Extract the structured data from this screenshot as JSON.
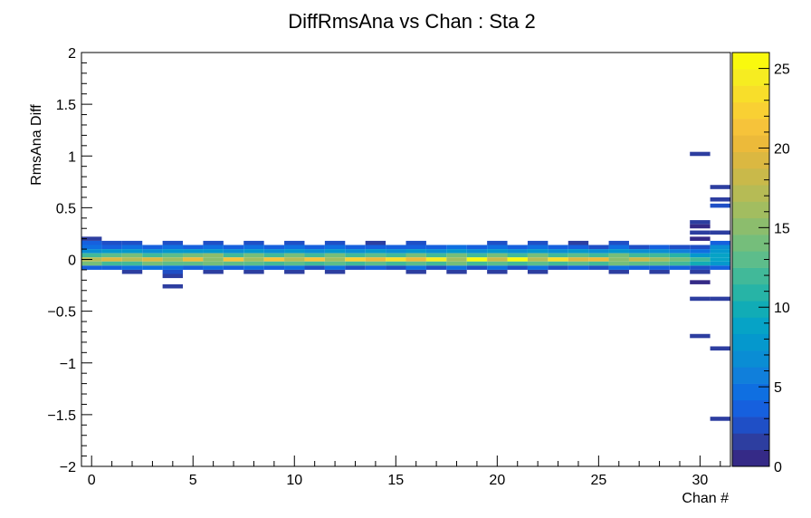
{
  "chart_data": {
    "type": "heatmap",
    "title": "DiffRmsAna vs Chan : Sta 2",
    "xlabel": "Chan #",
    "ylabel": "RmsAna Diff",
    "xlim": [
      -0.5,
      31.5
    ],
    "ylim": [
      -2,
      2
    ],
    "x_ticks": [
      0,
      5,
      10,
      15,
      20,
      25,
      30
    ],
    "y_ticks": [
      -2,
      -1.5,
      -1,
      -0.5,
      0,
      0.5,
      1,
      1.5,
      2
    ],
    "colorbar": {
      "min": 0,
      "max": 26,
      "ticks": [
        0,
        5,
        10,
        15,
        20,
        25
      ]
    },
    "bin_width_x": 1,
    "bin_width_y": 0.04,
    "grid": false,
    "cells": [
      [
        0,
        0.2,
        2
      ],
      [
        0,
        0.16,
        4
      ],
      [
        0,
        0.12,
        5
      ],
      [
        0,
        0.08,
        7
      ],
      [
        0,
        0.04,
        12
      ],
      [
        0,
        0,
        17
      ],
      [
        0,
        -0.04,
        14
      ],
      [
        0,
        -0.08,
        4
      ],
      [
        1,
        0.16,
        3
      ],
      [
        1,
        0.12,
        4
      ],
      [
        1,
        0.08,
        8
      ],
      [
        1,
        0.04,
        13
      ],
      [
        1,
        0,
        19
      ],
      [
        1,
        -0.04,
        12
      ],
      [
        1,
        -0.08,
        4
      ],
      [
        2,
        0.16,
        3
      ],
      [
        2,
        0.12,
        5
      ],
      [
        2,
        0.08,
        8
      ],
      [
        2,
        0.04,
        14
      ],
      [
        2,
        0,
        17
      ],
      [
        2,
        -0.04,
        12
      ],
      [
        2,
        -0.08,
        5
      ],
      [
        2,
        -0.12,
        2
      ],
      [
        3,
        0.12,
        4
      ],
      [
        3,
        0.08,
        7
      ],
      [
        3,
        0.04,
        12
      ],
      [
        3,
        0,
        19
      ],
      [
        3,
        -0.04,
        14
      ],
      [
        3,
        -0.08,
        5
      ],
      [
        4,
        0.16,
        3
      ],
      [
        4,
        0.12,
        5
      ],
      [
        4,
        0.08,
        8
      ],
      [
        4,
        0.04,
        13
      ],
      [
        4,
        0,
        16
      ],
      [
        4,
        -0.04,
        13
      ],
      [
        4,
        -0.08,
        5
      ],
      [
        4,
        -0.12,
        3
      ],
      [
        4,
        -0.16,
        2
      ],
      [
        4,
        -0.26,
        2
      ],
      [
        5,
        0.12,
        4
      ],
      [
        5,
        0.08,
        8
      ],
      [
        5,
        0.04,
        14
      ],
      [
        5,
        0,
        20
      ],
      [
        5,
        -0.04,
        13
      ],
      [
        5,
        -0.08,
        4
      ],
      [
        6,
        0.16,
        3
      ],
      [
        6,
        0.12,
        5
      ],
      [
        6,
        0.08,
        8
      ],
      [
        6,
        0.04,
        15
      ],
      [
        6,
        0,
        15
      ],
      [
        6,
        -0.04,
        14
      ],
      [
        6,
        -0.08,
        5
      ],
      [
        6,
        -0.12,
        2
      ],
      [
        7,
        0.12,
        4
      ],
      [
        7,
        0.08,
        7
      ],
      [
        7,
        0.04,
        12
      ],
      [
        7,
        0,
        21
      ],
      [
        7,
        -0.04,
        13
      ],
      [
        7,
        -0.08,
        4
      ],
      [
        8,
        0.16,
        3
      ],
      [
        8,
        0.12,
        5
      ],
      [
        8,
        0.08,
        8
      ],
      [
        8,
        0.04,
        14
      ],
      [
        8,
        0,
        16
      ],
      [
        8,
        -0.04,
        13
      ],
      [
        8,
        -0.08,
        5
      ],
      [
        8,
        -0.12,
        2
      ],
      [
        9,
        0.12,
        4
      ],
      [
        9,
        0.08,
        7
      ],
      [
        9,
        0.04,
        12
      ],
      [
        9,
        0,
        21
      ],
      [
        9,
        -0.04,
        12
      ],
      [
        9,
        -0.08,
        4
      ],
      [
        10,
        0.16,
        3
      ],
      [
        10,
        0.12,
        5
      ],
      [
        10,
        0.08,
        8
      ],
      [
        10,
        0.04,
        14
      ],
      [
        10,
        0,
        17
      ],
      [
        10,
        -0.04,
        13
      ],
      [
        10,
        -0.08,
        5
      ],
      [
        10,
        -0.12,
        2
      ],
      [
        11,
        0.12,
        4
      ],
      [
        11,
        0.08,
        7
      ],
      [
        11,
        0.04,
        12
      ],
      [
        11,
        0,
        21
      ],
      [
        11,
        -0.04,
        12
      ],
      [
        11,
        -0.08,
        3
      ],
      [
        12,
        0.16,
        3
      ],
      [
        12,
        0.12,
        5
      ],
      [
        12,
        0.08,
        8
      ],
      [
        12,
        0.04,
        14
      ],
      [
        12,
        0,
        16
      ],
      [
        12,
        -0.04,
        13
      ],
      [
        12,
        -0.08,
        5
      ],
      [
        12,
        -0.12,
        2
      ],
      [
        13,
        0.12,
        4
      ],
      [
        13,
        0.08,
        7
      ],
      [
        13,
        0.04,
        12
      ],
      [
        13,
        0,
        22
      ],
      [
        13,
        -0.04,
        12
      ],
      [
        13,
        -0.08,
        3
      ],
      [
        14,
        0.16,
        2
      ],
      [
        14,
        0.12,
        4
      ],
      [
        14,
        0.08,
        8
      ],
      [
        14,
        0.04,
        13
      ],
      [
        14,
        0,
        20
      ],
      [
        14,
        -0.04,
        13
      ],
      [
        14,
        -0.08,
        4
      ],
      [
        15,
        0.12,
        4
      ],
      [
        15,
        0.08,
        7
      ],
      [
        15,
        0.04,
        12
      ],
      [
        15,
        0,
        23
      ],
      [
        15,
        -0.04,
        12
      ],
      [
        15,
        -0.08,
        3
      ],
      [
        16,
        0.16,
        3
      ],
      [
        16,
        0.12,
        4
      ],
      [
        16,
        0.08,
        8
      ],
      [
        16,
        0.04,
        14
      ],
      [
        16,
        0,
        20
      ],
      [
        16,
        -0.04,
        13
      ],
      [
        16,
        -0.08,
        5
      ],
      [
        16,
        -0.12,
        2
      ],
      [
        17,
        0.12,
        4
      ],
      [
        17,
        0.08,
        7
      ],
      [
        17,
        0.04,
        12
      ],
      [
        17,
        0,
        24
      ],
      [
        17,
        -0.04,
        12
      ],
      [
        17,
        -0.08,
        3
      ],
      [
        18,
        0.12,
        5
      ],
      [
        18,
        0.08,
        8
      ],
      [
        18,
        0.04,
        14
      ],
      [
        18,
        0,
        16
      ],
      [
        18,
        -0.04,
        14
      ],
      [
        18,
        -0.08,
        5
      ],
      [
        18,
        -0.12,
        2
      ],
      [
        19,
        0.12,
        4
      ],
      [
        19,
        0.08,
        7
      ],
      [
        19,
        0.04,
        12
      ],
      [
        19,
        0,
        25
      ],
      [
        19,
        -0.04,
        12
      ],
      [
        19,
        -0.08,
        3
      ],
      [
        20,
        0.16,
        3
      ],
      [
        20,
        0.12,
        5
      ],
      [
        20,
        0.08,
        8
      ],
      [
        20,
        0.04,
        14
      ],
      [
        20,
        0,
        18
      ],
      [
        20,
        -0.04,
        13
      ],
      [
        20,
        -0.08,
        5
      ],
      [
        20,
        -0.12,
        2
      ],
      [
        21,
        0.12,
        4
      ],
      [
        21,
        0.08,
        7
      ],
      [
        21,
        0.04,
        12
      ],
      [
        21,
        0,
        25
      ],
      [
        21,
        -0.04,
        12
      ],
      [
        21,
        -0.08,
        3
      ],
      [
        22,
        0.16,
        3
      ],
      [
        22,
        0.12,
        5
      ],
      [
        22,
        0.08,
        8
      ],
      [
        22,
        0.04,
        14
      ],
      [
        22,
        0,
        17
      ],
      [
        22,
        -0.04,
        13
      ],
      [
        22,
        -0.08,
        5
      ],
      [
        22,
        -0.12,
        2
      ],
      [
        23,
        0.12,
        4
      ],
      [
        23,
        0.08,
        7
      ],
      [
        23,
        0.04,
        12
      ],
      [
        23,
        0,
        23
      ],
      [
        23,
        -0.04,
        12
      ],
      [
        23,
        -0.08,
        3
      ],
      [
        24,
        0.16,
        2
      ],
      [
        24,
        0.12,
        4
      ],
      [
        24,
        0.08,
        8
      ],
      [
        24,
        0.04,
        13
      ],
      [
        24,
        0,
        19
      ],
      [
        24,
        -0.04,
        13
      ],
      [
        24,
        -0.08,
        4
      ],
      [
        25,
        0.12,
        3
      ],
      [
        25,
        0.08,
        7
      ],
      [
        25,
        0.04,
        12
      ],
      [
        25,
        0,
        20
      ],
      [
        25,
        -0.04,
        12
      ],
      [
        25,
        -0.08,
        3
      ],
      [
        26,
        0.16,
        3
      ],
      [
        26,
        0.12,
        5
      ],
      [
        26,
        0.08,
        8
      ],
      [
        26,
        0.04,
        14
      ],
      [
        26,
        0,
        15
      ],
      [
        26,
        -0.04,
        14
      ],
      [
        26,
        -0.08,
        5
      ],
      [
        26,
        -0.12,
        2
      ],
      [
        27,
        0.12,
        3
      ],
      [
        27,
        0.08,
        7
      ],
      [
        27,
        0.04,
        12
      ],
      [
        27,
        0,
        18
      ],
      [
        27,
        -0.04,
        13
      ],
      [
        27,
        -0.08,
        4
      ],
      [
        28,
        0.12,
        4
      ],
      [
        28,
        0.08,
        7
      ],
      [
        28,
        0.04,
        12
      ],
      [
        28,
        0,
        16
      ],
      [
        28,
        -0.04,
        13
      ],
      [
        28,
        -0.08,
        4
      ],
      [
        28,
        -0.12,
        2
      ],
      [
        29,
        0.12,
        3
      ],
      [
        29,
        0.08,
        6
      ],
      [
        29,
        0.04,
        11
      ],
      [
        29,
        0,
        14
      ],
      [
        29,
        -0.04,
        12
      ],
      [
        29,
        -0.08,
        4
      ],
      [
        30,
        1.02,
        2
      ],
      [
        30,
        0.36,
        2
      ],
      [
        30,
        0.32,
        1
      ],
      [
        30,
        0.26,
        2
      ],
      [
        30,
        0.2,
        1
      ],
      [
        30,
        0.12,
        3
      ],
      [
        30,
        0.08,
        5
      ],
      [
        30,
        0.04,
        8
      ],
      [
        30,
        0,
        12
      ],
      [
        30,
        -0.04,
        10
      ],
      [
        30,
        -0.08,
        3
      ],
      [
        30,
        -0.12,
        2
      ],
      [
        30,
        -0.22,
        1
      ],
      [
        30,
        -0.38,
        2
      ],
      [
        30,
        -0.74,
        2
      ],
      [
        31,
        0.7,
        2
      ],
      [
        31,
        0.58,
        2
      ],
      [
        31,
        0.52,
        3
      ],
      [
        31,
        0.26,
        2
      ],
      [
        31,
        0.16,
        4
      ],
      [
        31,
        0.12,
        7
      ],
      [
        31,
        0.08,
        8
      ],
      [
        31,
        0.04,
        9
      ],
      [
        31,
        0,
        9
      ],
      [
        31,
        -0.04,
        8
      ],
      [
        31,
        -0.08,
        4
      ],
      [
        31,
        -0.38,
        2
      ],
      [
        31,
        -0.86,
        2
      ],
      [
        31,
        -1.54,
        2
      ]
    ]
  },
  "palette": [
    "#352a87",
    "#2d3ea0",
    "#1f4fc6",
    "#1660de",
    "#0f6fe1",
    "#107fdb",
    "#0a8dd4",
    "#0598cd",
    "#06a3c6",
    "#11acb6",
    "#27b4a6",
    "#41b999",
    "#5dbd8b",
    "#75be7b",
    "#8cbd6d",
    "#a2bd60",
    "#b6bb55",
    "#c9b94a",
    "#dbb841",
    "#ecba3a",
    "#f6c33a",
    "#f9d033",
    "#f8de2a",
    "#f6ec21",
    "#f9f90e"
  ]
}
